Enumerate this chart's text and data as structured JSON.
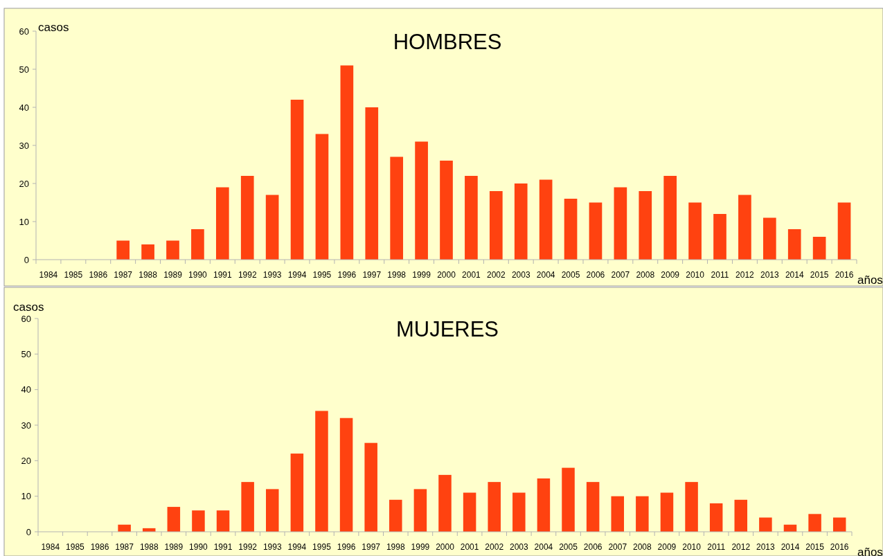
{
  "chart_data": [
    {
      "type": "bar",
      "title": "HOMBRES",
      "xlabel": "años",
      "ylabel": "casos",
      "color": "#ff4210",
      "ylim": [
        0,
        60
      ],
      "yticks": [
        0,
        10,
        20,
        30,
        40,
        50,
        60
      ],
      "grid": false,
      "categories": [
        "1984",
        "1985",
        "1986",
        "1987",
        "1988",
        "1989",
        "1990",
        "1991",
        "1992",
        "1993",
        "1994",
        "1995",
        "1996",
        "1997",
        "1998",
        "1999",
        "2000",
        "2001",
        "2002",
        "2003",
        "2004",
        "2005",
        "2006",
        "2007",
        "2008",
        "2009",
        "2010",
        "2011",
        "2012",
        "2013",
        "2014",
        "2015",
        "2016"
      ],
      "values": [
        0,
        0,
        0,
        5,
        4,
        5,
        8,
        19,
        22,
        17,
        42,
        33,
        51,
        40,
        27,
        31,
        26,
        22,
        18,
        20,
        21,
        16,
        15,
        19,
        18,
        22,
        15,
        12,
        17,
        11,
        8,
        6,
        15
      ]
    },
    {
      "type": "bar",
      "title": "MUJERES",
      "xlabel": "años",
      "ylabel": "casos",
      "color": "#ff4210",
      "ylim": [
        0,
        60
      ],
      "yticks": [
        0,
        10,
        20,
        30,
        40,
        50,
        60
      ],
      "grid": false,
      "categories": [
        "1984",
        "1985",
        "1986",
        "1987",
        "1988",
        "1989",
        "1990",
        "1991",
        "1992",
        "1993",
        "1994",
        "1995",
        "1996",
        "1997",
        "1998",
        "1999",
        "2000",
        "2001",
        "2002",
        "2003",
        "2004",
        "2005",
        "2006",
        "2007",
        "2008",
        "2009",
        "2010",
        "2011",
        "2012",
        "2013",
        "2014",
        "2015",
        "2016"
      ],
      "values": [
        0,
        0,
        0,
        2,
        1,
        7,
        6,
        6,
        14,
        12,
        22,
        34,
        32,
        25,
        9,
        12,
        16,
        11,
        14,
        11,
        15,
        18,
        14,
        10,
        10,
        11,
        14,
        8,
        9,
        4,
        2,
        5,
        4
      ]
    }
  ]
}
